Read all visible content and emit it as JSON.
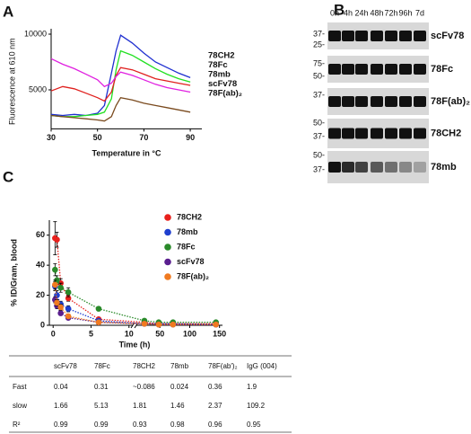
{
  "panel_labels": [
    "A",
    "B",
    "C"
  ],
  "chart_data": [
    {
      "type": "line",
      "x_label": "Temperature in °C",
      "y_label": "Fluorescence at 610 nm",
      "x": [
        30,
        35,
        40,
        45,
        50,
        53,
        56,
        58,
        60,
        65,
        70,
        75,
        80,
        85,
        90
      ],
      "xlim": [
        30,
        95
      ],
      "xticks": [
        30,
        50,
        70,
        90
      ],
      "ylim": [
        1500,
        10000
      ],
      "yticks": [
        5000,
        10000
      ],
      "legend_position": "right",
      "series": [
        {
          "name": "78CH2",
          "color": "#1f2fd0",
          "values": [
            2800,
            2700,
            2800,
            2700,
            2900,
            3600,
            6500,
            8500,
            9900,
            9200,
            8300,
            7500,
            7000,
            6500,
            6100
          ]
        },
        {
          "name": "78Fc",
          "color": "#22e022",
          "values": [
            2700,
            2600,
            2600,
            2700,
            2800,
            3000,
            4200,
            6800,
            8500,
            8100,
            7500,
            6900,
            6400,
            6000,
            5700
          ]
        },
        {
          "name": "78mb",
          "color": "#e0201e",
          "values": [
            4900,
            5300,
            5100,
            4700,
            4300,
            4000,
            4800,
            6300,
            7000,
            6800,
            6400,
            6000,
            5800,
            5600,
            5400
          ]
        },
        {
          "name": "scFv78",
          "color": "#e020e0",
          "values": [
            7800,
            7300,
            6900,
            6400,
            5900,
            5300,
            5600,
            6200,
            6600,
            6300,
            5900,
            5500,
            5200,
            5000,
            4800
          ]
        },
        {
          "name": "78F(ab)₂",
          "color": "#7a4a1e",
          "values": [
            2700,
            2600,
            2500,
            2400,
            2300,
            2200,
            2600,
            3600,
            4300,
            4100,
            3800,
            3600,
            3400,
            3200,
            3000
          ]
        }
      ]
    },
    {
      "type": "scatter",
      "x_label": "Time (h)",
      "y_label": "% ID/Gram, blood",
      "x": [
        0.25,
        0.5,
        1,
        2,
        6,
        24,
        48,
        72,
        144
      ],
      "xlim_segments": [
        [
          -0.5,
          10.5
        ],
        [
          10.5,
          155
        ]
      ],
      "xticks": [
        0,
        5,
        10,
        50,
        100,
        150
      ],
      "ylim": [
        0,
        70
      ],
      "yticks": [
        0,
        20,
        40,
        60
      ],
      "legend_position": "top-right",
      "series": [
        {
          "name": "78CH2",
          "color": "#e8201c",
          "values": [
            58,
            57,
            28,
            18,
            4,
            2,
            1,
            1,
            1
          ],
          "errors": [
            11,
            5,
            3,
            2,
            1,
            0.5,
            0.5,
            0.5,
            0.5
          ]
        },
        {
          "name": "78mb",
          "color": "#1f3fcf",
          "values": [
            26,
            20,
            14,
            11,
            3,
            1,
            1,
            1,
            0.5
          ],
          "errors": [
            3,
            3,
            2,
            2,
            1,
            0.5,
            0.5,
            0.5,
            0.5
          ]
        },
        {
          "name": "78Fc",
          "color": "#2a8a2a",
          "values": [
            37,
            30,
            25,
            22,
            11,
            3,
            2,
            2,
            2
          ],
          "errors": [
            4,
            3,
            3,
            3,
            1,
            0.5,
            0.5,
            0.5,
            0.5
          ]
        },
        {
          "name": "scFv78",
          "color": "#5a1f8f",
          "values": [
            17,
            13,
            8,
            5,
            2,
            1,
            0.5,
            0.5,
            0.5
          ],
          "errors": [
            2,
            2,
            1,
            1,
            0.5,
            0.5,
            0.5,
            0.5,
            0.5
          ]
        },
        {
          "name": "78F(ab)₂",
          "color": "#f07a20",
          "values": [
            27,
            15,
            12,
            6,
            2,
            1,
            0.5,
            0.5,
            0.5
          ],
          "errors": [
            3,
            2,
            2,
            1,
            0.5,
            0.5,
            0.5,
            0.5,
            0.5
          ]
        }
      ]
    }
  ],
  "blot": {
    "lanes": [
      "0h",
      "4h",
      "24h",
      "48h",
      "72h",
      "96h",
      "7d"
    ],
    "rows": [
      {
        "label": "scFv78",
        "markers": [
          "37-",
          "25-"
        ]
      },
      {
        "label": "78Fc",
        "markers": [
          "75-",
          "50-"
        ]
      },
      {
        "label": "78F(ab)₂",
        "markers": [
          "37-"
        ]
      },
      {
        "label": "78CH2",
        "markers": [
          "50-",
          "37-"
        ]
      },
      {
        "label": "78mb",
        "markers": [
          "50-",
          "37-"
        ]
      }
    ]
  },
  "table": {
    "columns": [
      "scFv78",
      "78Fc",
      "78CH2",
      "78mb",
      "78F(ab')₂",
      "IgG (004)"
    ],
    "rows": [
      {
        "label": "Fast",
        "values": [
          "0.04",
          "0.31",
          "~0.086",
          "0.024",
          "0.36",
          "1.9"
        ]
      },
      {
        "label": "slow",
        "values": [
          "1.66",
          "5.13",
          "1.81",
          "1.46",
          "2.37",
          "109.2"
        ]
      },
      {
        "label": "R²",
        "values": [
          "0.99",
          "0.99",
          "0.93",
          "0.98",
          "0.96",
          "0.95"
        ]
      }
    ]
  }
}
